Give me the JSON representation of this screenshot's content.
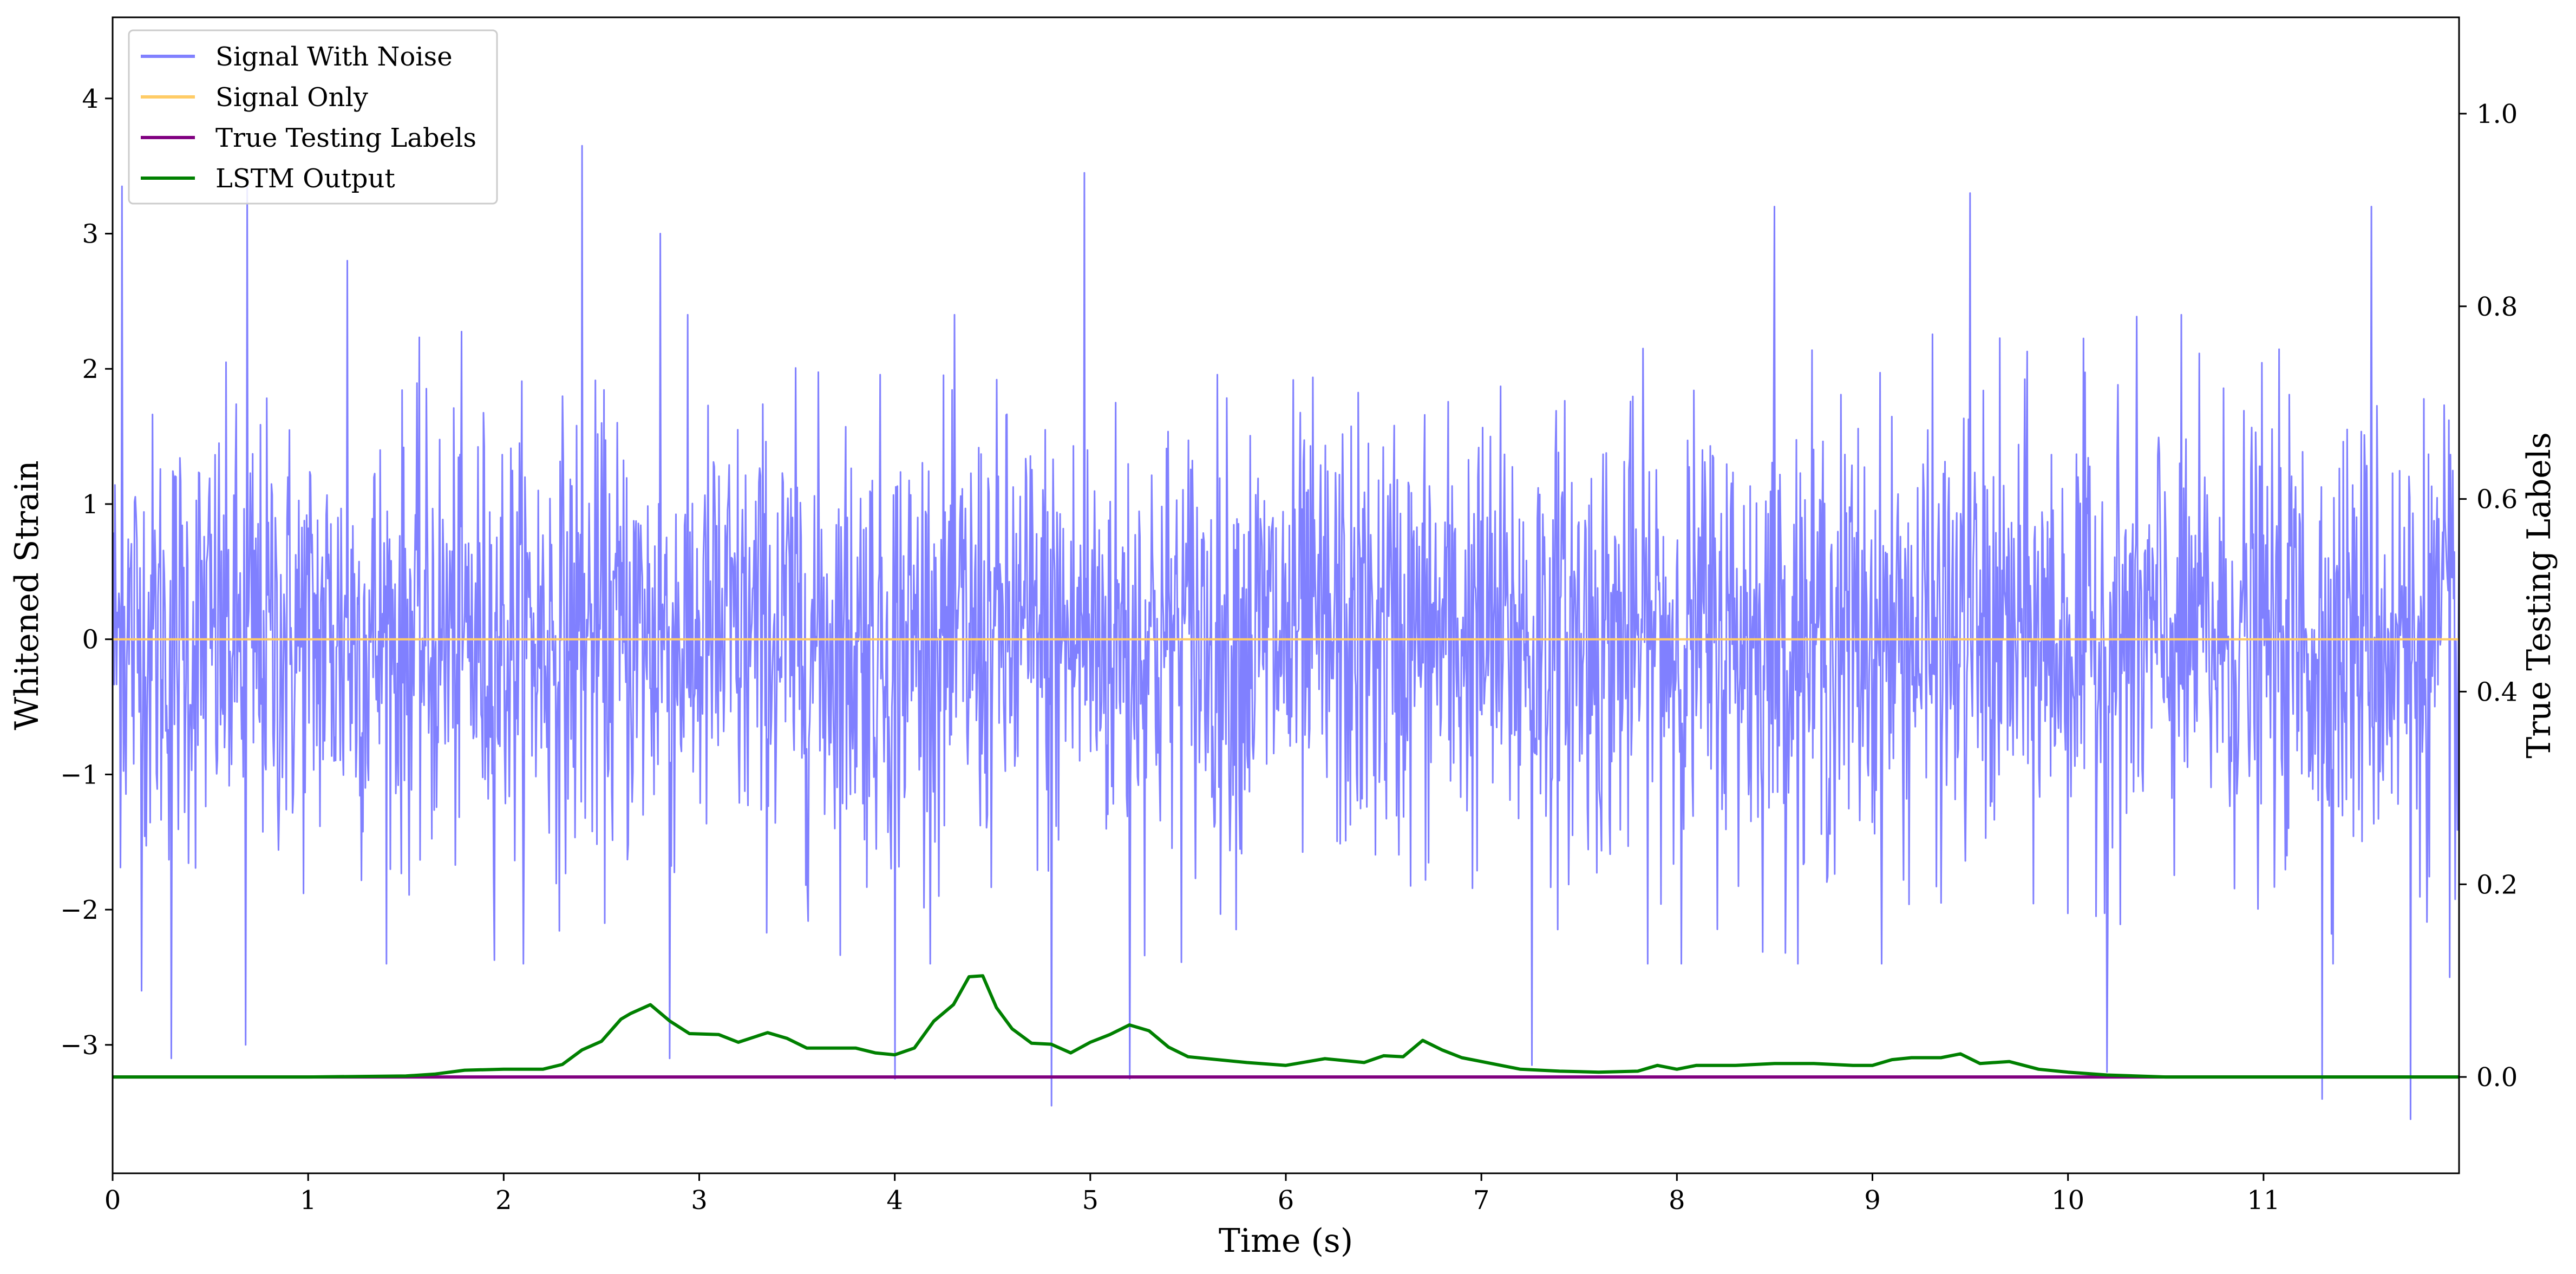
{
  "chart_data": {
    "type": "line",
    "xlabel": "Time (s)",
    "ylabel": "Whitened Strain",
    "ylabel_right": "True Testing Labels",
    "xlim": [
      0,
      12.0
    ],
    "ylim": [
      -3.95,
      4.6
    ],
    "ylim_right": [
      -0.1,
      1.1
    ],
    "x_ticks": [
      0,
      1,
      2,
      3,
      4,
      5,
      6,
      7,
      8,
      9,
      10,
      11
    ],
    "x_tick_labels": [
      "0",
      "1",
      "2",
      "3",
      "4",
      "5",
      "6",
      "7",
      "8",
      "9",
      "10",
      "11"
    ],
    "y_ticks": [
      -3,
      -2,
      -1,
      0,
      1,
      2,
      3,
      4
    ],
    "y_tick_labels": [
      "−3",
      "−2",
      "−1",
      "0",
      "1",
      "2",
      "3",
      "4"
    ],
    "y_right_ticks": [
      0.0,
      0.2,
      0.4,
      0.6,
      0.8,
      1.0
    ],
    "y_right_tick_labels": [
      "0.0",
      "0.2",
      "0.4",
      "0.6",
      "0.8",
      "1.0"
    ],
    "grid": false,
    "legend_position": "top-left",
    "series": [
      {
        "name": "Signal With Noise",
        "axis": "left",
        "color": "#8080ff",
        "kind": "noise",
        "samples": 3000,
        "std": 0.82,
        "peaks": [
          [
            0.05,
            3.35
          ],
          [
            0.15,
            -2.6
          ],
          [
            0.3,
            -3.1
          ],
          [
            0.68,
            -3.0
          ],
          [
            0.69,
            3.35
          ],
          [
            1.2,
            2.8
          ],
          [
            2.4,
            3.65
          ],
          [
            2.8,
            3.0
          ],
          [
            2.85,
            -3.1
          ],
          [
            4.0,
            -3.25
          ],
          [
            4.8,
            -3.45
          ],
          [
            4.97,
            3.45
          ],
          [
            5.2,
            -3.25
          ],
          [
            7.26,
            -3.15
          ],
          [
            8.5,
            3.2
          ],
          [
            9.5,
            3.3
          ],
          [
            10.2,
            -3.2
          ],
          [
            11.3,
            -3.4
          ],
          [
            11.55,
            3.2
          ],
          [
            11.75,
            -3.55
          ],
          [
            11.95,
            -2.5
          ]
        ]
      },
      {
        "name": "Signal Only",
        "axis": "left",
        "color": "#ffcc66",
        "x": [
          0,
          12.0
        ],
        "y": [
          0,
          0
        ]
      },
      {
        "name": "True Testing Labels",
        "axis": "right",
        "color": "#800080",
        "x": [
          0,
          12.0
        ],
        "y": [
          0,
          0
        ]
      },
      {
        "name": "LSTM Output",
        "axis": "right",
        "color": "#008000",
        "x": [
          0,
          0.5,
          1.0,
          1.5,
          1.65,
          1.8,
          2.0,
          2.2,
          2.3,
          2.4,
          2.5,
          2.6,
          2.65,
          2.75,
          2.85,
          2.95,
          3.1,
          3.2,
          3.35,
          3.45,
          3.55,
          3.65,
          3.8,
          3.9,
          4.0,
          4.1,
          4.2,
          4.3,
          4.38,
          4.45,
          4.52,
          4.6,
          4.7,
          4.8,
          4.9,
          5.0,
          5.1,
          5.2,
          5.3,
          5.4,
          5.5,
          5.6,
          5.8,
          6.0,
          6.2,
          6.4,
          6.5,
          6.6,
          6.7,
          6.8,
          6.9,
          7.0,
          7.2,
          7.4,
          7.6,
          7.8,
          7.9,
          8.0,
          8.1,
          8.3,
          8.5,
          8.7,
          8.9,
          9.0,
          9.1,
          9.2,
          9.35,
          9.45,
          9.55,
          9.7,
          9.85,
          10.0,
          10.2,
          10.5,
          11.0,
          12.0
        ],
        "y": [
          0.0,
          0.0,
          0.0,
          0.001,
          0.003,
          0.007,
          0.008,
          0.008,
          0.013,
          0.028,
          0.037,
          0.06,
          0.066,
          0.075,
          0.058,
          0.045,
          0.044,
          0.036,
          0.046,
          0.04,
          0.03,
          0.03,
          0.03,
          0.025,
          0.023,
          0.03,
          0.058,
          0.075,
          0.104,
          0.105,
          0.072,
          0.05,
          0.035,
          0.034,
          0.025,
          0.036,
          0.044,
          0.054,
          0.048,
          0.031,
          0.021,
          0.019,
          0.015,
          0.012,
          0.019,
          0.015,
          0.022,
          0.021,
          0.038,
          0.028,
          0.02,
          0.016,
          0.008,
          0.006,
          0.005,
          0.006,
          0.012,
          0.008,
          0.012,
          0.012,
          0.014,
          0.014,
          0.012,
          0.012,
          0.018,
          0.02,
          0.02,
          0.024,
          0.014,
          0.016,
          0.008,
          0.005,
          0.002,
          0.0,
          0.0,
          0.0
        ]
      }
    ]
  }
}
